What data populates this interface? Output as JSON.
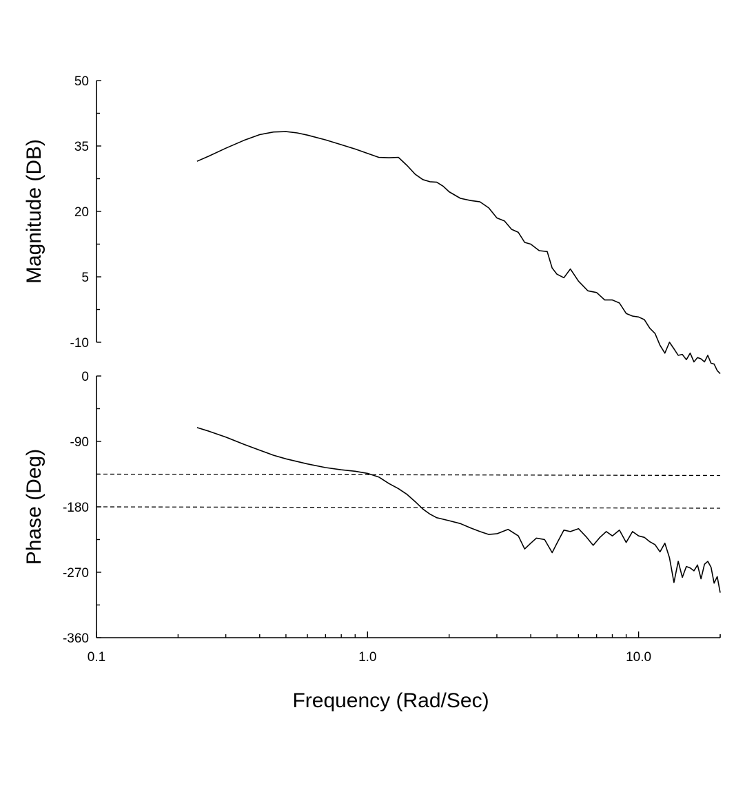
{
  "chart_data": [
    {
      "type": "line",
      "panel": "magnitude",
      "ylabel": "Magnitude (DB)",
      "xlabel": "",
      "xscale": "log",
      "xlim": [
        0.1,
        20
      ],
      "ylim": [
        -10,
        50
      ],
      "yticks": [
        -10,
        5,
        20,
        35,
        50
      ],
      "ytick_labels": [
        "-10",
        "5",
        "20",
        "35",
        "50"
      ],
      "grid": false,
      "series": [
        {
          "x": [
            0.235,
            0.26,
            0.3,
            0.35,
            0.4,
            0.45,
            0.5,
            0.55,
            0.6,
            0.7,
            0.8,
            0.9,
            1.0,
            1.1,
            1.2,
            1.3,
            1.4,
            1.5,
            1.6,
            1.7,
            1.8,
            1.9,
            2.0,
            2.2,
            2.4,
            2.6,
            2.8,
            3.0,
            3.2,
            3.4,
            3.6,
            3.8,
            4.0,
            4.3,
            4.6,
            4.8,
            5.0,
            5.3,
            5.6,
            6.0,
            6.5,
            7.0,
            7.5,
            8.0,
            8.5,
            9.0,
            9.5,
            10.0,
            10.5,
            11.0,
            11.5,
            12.0,
            12.5,
            13.0,
            13.5,
            14.0,
            14.5,
            15.0,
            15.5,
            16.0,
            16.5,
            17.0,
            17.5,
            18.0,
            18.5,
            19.0,
            19.5,
            20.0
          ],
          "values": [
            31.5,
            32.7,
            34.5,
            36.3,
            37.6,
            38.2,
            38.3,
            38.0,
            37.5,
            36.4,
            35.3,
            34.3,
            33.3,
            32.4,
            32.3,
            32.4,
            30.5,
            28.5,
            27.3,
            26.8,
            26.7,
            25.8,
            24.5,
            23.0,
            22.5,
            22.2,
            20.8,
            18.5,
            17.8,
            15.9,
            15.2,
            12.9,
            12.5,
            11.0,
            10.8,
            7.0,
            5.6,
            4.8,
            6.8,
            4.0,
            1.8,
            1.4,
            -0.3,
            -0.3,
            -1.0,
            -3.4,
            -4.0,
            -4.2,
            -4.8,
            -6.8,
            -8.0,
            -10.7,
            -12.5,
            -10.0,
            -11.5,
            -13.0,
            -12.8,
            -14.0,
            -12.5,
            -14.5,
            -13.5,
            -13.8,
            -14.5,
            -13.0,
            -14.8,
            -15.0,
            -16.5,
            -17.2
          ]
        }
      ]
    },
    {
      "type": "line",
      "panel": "phase",
      "ylabel": "Phase (Deg)",
      "xlabel": "Frequency (Rad/Sec)",
      "xscale": "log",
      "xlim": [
        0.1,
        20
      ],
      "ylim": [
        -360,
        0
      ],
      "yticks": [
        -360,
        -270,
        -180,
        -90,
        0
      ],
      "ytick_labels": [
        "-360",
        "-270",
        "-180",
        "-90",
        "0"
      ],
      "xticks": [
        0.1,
        1.0,
        10.0
      ],
      "xtick_labels": [
        "0.1",
        "1.0",
        "10.0"
      ],
      "grid": false,
      "reference_lines": [
        -135,
        -180
      ],
      "series": [
        {
          "x": [
            0.235,
            0.26,
            0.3,
            0.35,
            0.4,
            0.45,
            0.5,
            0.6,
            0.7,
            0.8,
            0.9,
            1.0,
            1.1,
            1.2,
            1.3,
            1.4,
            1.5,
            1.6,
            1.7,
            1.8,
            2.0,
            2.2,
            2.4,
            2.6,
            2.8,
            3.0,
            3.3,
            3.6,
            3.8,
            4.0,
            4.2,
            4.5,
            4.8,
            5.0,
            5.3,
            5.6,
            6.0,
            6.4,
            6.8,
            7.2,
            7.6,
            8.0,
            8.5,
            9.0,
            9.5,
            10.0,
            10.5,
            11.0,
            11.5,
            12.0,
            12.5,
            13.0,
            13.5,
            14.0,
            14.5,
            15.0,
            15.5,
            16.0,
            16.5,
            17.0,
            17.5,
            18.0,
            18.5,
            19.0,
            19.5,
            20.0
          ],
          "values": [
            -71,
            -76,
            -84,
            -94,
            -102,
            -109,
            -114,
            -121,
            -126,
            -129,
            -131,
            -134,
            -139,
            -148,
            -155,
            -163,
            -173,
            -183,
            -190,
            -195,
            -199,
            -203,
            -209,
            -214,
            -218,
            -217,
            -211,
            -220,
            -238,
            -230,
            -223,
            -225,
            -243,
            -230,
            -212,
            -214,
            -210,
            -221,
            -233,
            -222,
            -214,
            -220,
            -212,
            -229,
            -214,
            -220,
            -222,
            -228,
            -232,
            -242,
            -230,
            -250,
            -284,
            -255,
            -277,
            -262,
            -264,
            -268,
            -260,
            -279,
            -259,
            -255,
            -263,
            -285,
            -276,
            -298
          ]
        }
      ]
    }
  ]
}
